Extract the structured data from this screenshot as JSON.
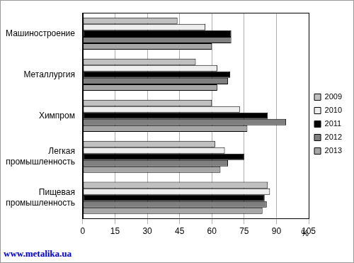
{
  "chart_data": {
    "type": "bar",
    "orientation": "horizontal",
    "categories": [
      "Машиностроение",
      "Металлургия",
      "Химпром",
      "Легкая промышленность",
      "Пищевая промышленность"
    ],
    "series": [
      {
        "name": "2009",
        "color": "#c0c0c0",
        "values": [
          44,
          52.5,
          60,
          61.5,
          86
        ]
      },
      {
        "name": "2010",
        "color": "#eeeeee",
        "values": [
          57,
          62.5,
          73,
          66,
          87
        ]
      },
      {
        "name": "2011",
        "color": "#000000",
        "values": [
          69,
          68.5,
          86,
          75,
          84.5
        ]
      },
      {
        "name": "2012",
        "color": "#7f7f7f",
        "values": [
          69,
          67.5,
          94.5,
          67.5,
          85.5
        ]
      },
      {
        "name": "2013",
        "color": "#a6a6a6",
        "values": [
          60,
          62.5,
          76.5,
          64,
          83.5
        ]
      }
    ],
    "xlim": [
      0,
      105
    ],
    "xticks": [
      0,
      15,
      30,
      45,
      60,
      75,
      90,
      105
    ],
    "x_label": "%",
    "grid": true,
    "legend": "right",
    "source": "www.metalika.ua"
  }
}
